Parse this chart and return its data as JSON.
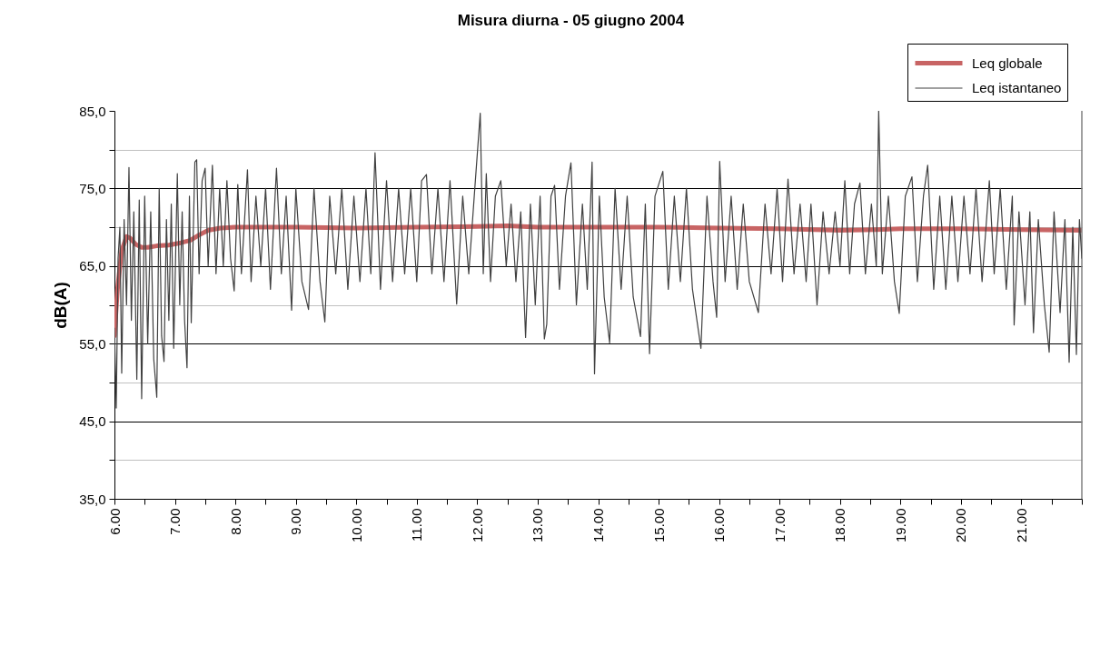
{
  "chart_data": {
    "type": "line",
    "title": "Misura diurna - 05 giugno 2004",
    "ylabel": "dB(A)",
    "xlim": [
      6,
      22
    ],
    "ylim": [
      35,
      85
    ],
    "xticks": [
      {
        "value": 6,
        "label": "6.00"
      },
      {
        "value": 6.5,
        "label": null
      },
      {
        "value": 7,
        "label": "7.00"
      },
      {
        "value": 7.5,
        "label": null
      },
      {
        "value": 8,
        "label": "8.00"
      },
      {
        "value": 8.5,
        "label": null
      },
      {
        "value": 9,
        "label": "9.00"
      },
      {
        "value": 9.5,
        "label": null
      },
      {
        "value": 10,
        "label": "10.00"
      },
      {
        "value": 10.5,
        "label": null
      },
      {
        "value": 11,
        "label": "11.00"
      },
      {
        "value": 11.5,
        "label": null
      },
      {
        "value": 12,
        "label": "12.00"
      },
      {
        "value": 12.5,
        "label": null
      },
      {
        "value": 13,
        "label": "13.00"
      },
      {
        "value": 13.5,
        "label": null
      },
      {
        "value": 14,
        "label": "14.00"
      },
      {
        "value": 14.5,
        "label": null
      },
      {
        "value": 15,
        "label": "15.00"
      },
      {
        "value": 15.5,
        "label": null
      },
      {
        "value": 16,
        "label": "16.00"
      },
      {
        "value": 16.5,
        "label": null
      },
      {
        "value": 17,
        "label": "17.00"
      },
      {
        "value": 17.5,
        "label": null
      },
      {
        "value": 18,
        "label": "18.00"
      },
      {
        "value": 18.5,
        "label": null
      },
      {
        "value": 19,
        "label": "19.00"
      },
      {
        "value": 19.5,
        "label": null
      },
      {
        "value": 20,
        "label": "20.00"
      },
      {
        "value": 20.5,
        "label": null
      },
      {
        "value": 21,
        "label": "21.00"
      },
      {
        "value": 21.5,
        "label": null
      },
      {
        "value": 22,
        "label": null
      }
    ],
    "yticks": [
      {
        "value": 35,
        "label": "35,0"
      },
      {
        "value": 40,
        "label": null
      },
      {
        "value": 45,
        "label": "45,0"
      },
      {
        "value": 50,
        "label": null
      },
      {
        "value": 55,
        "label": "55,0"
      },
      {
        "value": 60,
        "label": null
      },
      {
        "value": 65,
        "label": "65,0"
      },
      {
        "value": 70,
        "label": null
      },
      {
        "value": 75,
        "label": "75,0"
      },
      {
        "value": 80,
        "label": null
      },
      {
        "value": 85,
        "label": "85,0"
      }
    ],
    "grid": "y",
    "legend": "top right",
    "series": [
      {
        "name": "Leq globale",
        "color": "#c86464",
        "x": [
          6.0,
          6.05,
          6.12,
          6.2,
          6.26,
          6.35,
          6.45,
          6.55,
          6.7,
          6.9,
          7.1,
          7.25,
          7.4,
          7.55,
          7.75,
          8.0,
          9.0,
          10.0,
          11.0,
          12.0,
          12.5,
          13.0,
          14.0,
          15.0,
          16.0,
          17.0,
          18.0,
          18.6,
          19.0,
          20.0,
          21.0,
          22.0
        ],
        "values": [
          56,
          62,
          67,
          68.8,
          68.6,
          67.8,
          67.4,
          67.4,
          67.6,
          67.7,
          68.0,
          68.3,
          69.0,
          69.6,
          69.9,
          70.0,
          70.0,
          69.9,
          70.0,
          70.1,
          70.2,
          70.0,
          70.0,
          70.0,
          69.9,
          69.8,
          69.6,
          69.7,
          69.8,
          69.8,
          69.7,
          69.6
        ]
      },
      {
        "name": "Leq istantaneo",
        "color": "#404040",
        "x": [
          6.0,
          6.03,
          6.06,
          6.09,
          6.12,
          6.16,
          6.2,
          6.24,
          6.28,
          6.32,
          6.37,
          6.41,
          6.45,
          6.5,
          6.55,
          6.6,
          6.65,
          6.7,
          6.74,
          6.78,
          6.82,
          6.86,
          6.9,
          6.94,
          6.98,
          7.04,
          7.08,
          7.12,
          7.16,
          7.2,
          7.24,
          7.27,
          7.33,
          7.36,
          7.4,
          7.45,
          7.5,
          7.55,
          7.62,
          7.68,
          7.74,
          7.8,
          7.86,
          7.92,
          7.98,
          8.04,
          8.1,
          8.2,
          8.26,
          8.34,
          8.42,
          8.5,
          8.58,
          8.68,
          8.76,
          8.84,
          8.93,
          9.0,
          9.1,
          9.21,
          9.3,
          9.4,
          9.48,
          9.56,
          9.66,
          9.76,
          9.86,
          9.96,
          10.06,
          10.16,
          10.24,
          10.31,
          10.4,
          10.5,
          10.6,
          10.7,
          10.8,
          10.9,
          11.0,
          11.08,
          11.16,
          11.25,
          11.35,
          11.45,
          11.55,
          11.66,
          11.76,
          11.86,
          11.96,
          12.05,
          12.1,
          12.15,
          12.22,
          12.3,
          12.39,
          12.48,
          12.56,
          12.64,
          12.72,
          12.8,
          12.88,
          12.96,
          13.04,
          13.11,
          13.15,
          13.22,
          13.28,
          13.36,
          13.46,
          13.55,
          13.64,
          13.74,
          13.82,
          13.9,
          13.94,
          14.02,
          14.1,
          14.19,
          14.28,
          14.38,
          14.48,
          14.58,
          14.7,
          14.78,
          14.85,
          14.94,
          15.07,
          15.16,
          15.26,
          15.36,
          15.46,
          15.56,
          15.7,
          15.8,
          15.9,
          15.96,
          16.01,
          16.1,
          16.2,
          16.3,
          16.4,
          16.5,
          16.65,
          16.76,
          16.86,
          16.96,
          17.05,
          17.14,
          17.24,
          17.34,
          17.44,
          17.52,
          17.62,
          17.72,
          17.82,
          17.92,
          18.0,
          18.08,
          18.16,
          18.24,
          18.33,
          18.42,
          18.52,
          18.6,
          18.64,
          18.7,
          18.8,
          18.9,
          18.98,
          19.08,
          19.19,
          19.28,
          19.38,
          19.45,
          19.55,
          19.65,
          19.75,
          19.85,
          19.95,
          20.05,
          20.15,
          20.25,
          20.35,
          20.47,
          20.55,
          20.65,
          20.75,
          20.85,
          20.88,
          20.96,
          21.06,
          21.14,
          21.2,
          21.28,
          21.38,
          21.46,
          21.54,
          21.64,
          21.72,
          21.79,
          21.85,
          21.91,
          21.96,
          22.0
        ],
        "values": [
          57,
          46.7,
          66,
          70,
          51.2,
          71,
          60,
          77.7,
          58,
          72,
          50.4,
          73.5,
          47.9,
          74,
          55,
          72,
          53,
          48.1,
          75,
          56,
          52.7,
          71,
          58,
          73,
          54.4,
          76.9,
          60,
          72,
          58,
          51.9,
          74,
          57.7,
          78.4,
          78.7,
          64,
          76,
          77.6,
          65,
          78.0,
          64,
          75,
          65,
          76,
          66,
          61.8,
          75.5,
          64,
          77.4,
          63,
          74,
          65,
          75,
          62,
          77.6,
          64,
          74,
          59.3,
          75,
          63,
          59.4,
          75,
          63,
          57.8,
          74,
          64,
          75,
          62,
          74,
          63,
          75,
          64,
          79.6,
          62,
          76,
          63,
          75,
          64,
          75,
          63,
          76,
          76.8,
          64,
          75,
          63,
          76,
          60.1,
          74,
          64,
          75,
          84.7,
          64,
          76.9,
          63,
          74,
          76.0,
          65,
          73,
          63,
          72,
          55.8,
          73,
          60,
          74,
          55.6,
          57.5,
          74,
          75.4,
          62,
          74,
          78.3,
          60,
          73,
          62,
          78.4,
          51.1,
          74,
          61,
          55.1,
          75,
          62,
          74,
          61,
          55.9,
          73,
          53.7,
          74,
          77.2,
          62,
          74,
          63,
          75,
          62,
          54.4,
          74,
          63,
          58.4,
          78.5,
          63,
          74,
          62,
          73,
          63,
          59.0,
          73,
          64,
          75,
          63,
          76.2,
          64,
          73,
          63,
          73,
          60.0,
          72,
          64,
          72,
          65,
          76.0,
          64,
          73,
          75.7,
          64,
          73,
          65,
          85,
          64,
          74,
          63,
          58.9,
          74,
          76.5,
          63,
          74,
          78.0,
          62,
          74,
          62,
          74,
          63,
          74,
          64,
          75,
          63,
          76.0,
          64,
          75,
          62,
          74.0,
          57.4,
          72,
          60,
          72,
          56.4,
          71,
          60,
          53.9,
          72,
          59,
          71,
          52.6,
          70,
          53.6,
          71,
          66
        ]
      }
    ]
  }
}
